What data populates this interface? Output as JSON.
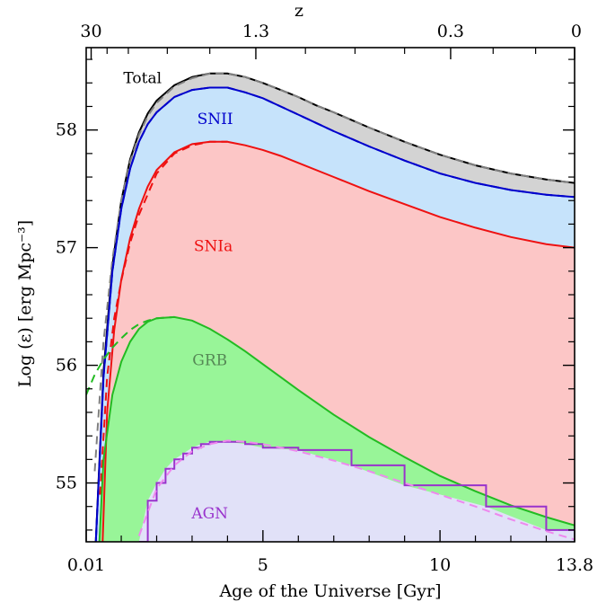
{
  "chart_data": {
    "type": "area",
    "xlabel": "Age of the Universe [Gyr]",
    "ylabel": "Log (ε) [erg Mpc⁻³]",
    "top_axis_label": "z",
    "xlim": [
      0.01,
      13.8
    ],
    "ylim": [
      54.5,
      58.7
    ],
    "x_ticks": [
      {
        "value": 0.01,
        "label": "0.01"
      },
      {
        "value": 5,
        "label": "5"
      },
      {
        "value": 10,
        "label": "10"
      },
      {
        "value": 13.8,
        "label": "13.8"
      }
    ],
    "y_ticks": [
      {
        "value": 55,
        "label": "55"
      },
      {
        "value": 56,
        "label": "56"
      },
      {
        "value": 57,
        "label": "57"
      },
      {
        "value": 58,
        "label": "58"
      }
    ],
    "top_ticks": [
      {
        "value": 0.15,
        "label": "30"
      },
      {
        "value": 4.8,
        "label": "1.3"
      },
      {
        "value": 10.3,
        "label": "0.3"
      },
      {
        "value": 13.8,
        "label": "0"
      }
    ],
    "series": [
      {
        "name": "Total",
        "fill": "#d3d3d3",
        "line_color": "#000000",
        "dashed_color": "#808080",
        "label_at": [
          1.6,
          58.4
        ],
        "x": [
          0.25,
          0.5,
          0.75,
          1.0,
          1.25,
          1.5,
          1.75,
          2.0,
          2.5,
          3.0,
          3.5,
          4.0,
          4.5,
          5.0,
          5.5,
          6.0,
          6.5,
          7.0,
          8.0,
          9.0,
          10.0,
          11.0,
          12.0,
          13.0,
          13.8
        ],
        "y": [
          54.3,
          55.95,
          56.85,
          57.4,
          57.75,
          57.98,
          58.14,
          58.25,
          58.38,
          58.45,
          58.48,
          58.48,
          58.45,
          58.4,
          58.34,
          58.28,
          58.21,
          58.15,
          58.02,
          57.9,
          57.79,
          57.7,
          57.63,
          57.58,
          57.55
        ],
        "dashed_y": [
          55.1,
          56.2,
          56.9,
          57.4,
          57.73,
          57.96,
          58.12,
          58.23,
          58.37,
          58.44,
          58.48,
          58.48,
          58.45,
          58.4,
          58.34,
          58.28,
          58.21,
          58.15,
          58.02,
          57.9,
          57.79,
          57.7,
          57.63,
          57.58,
          57.55
        ]
      },
      {
        "name": "SNII",
        "fill": "#c6e3fb",
        "line_color": "#0000cc",
        "dashed_color": "#0000cc",
        "label_at": [
          3.65,
          58.05
        ],
        "x": [
          0.25,
          0.5,
          0.75,
          1.0,
          1.25,
          1.5,
          1.75,
          2.0,
          2.5,
          3.0,
          3.5,
          4.0,
          4.5,
          5.0,
          5.5,
          6.0,
          6.5,
          7.0,
          8.0,
          9.0,
          10.0,
          11.0,
          12.0,
          13.0,
          13.8
        ],
        "y": [
          54.3,
          55.9,
          56.8,
          57.33,
          57.67,
          57.9,
          58.05,
          58.15,
          58.28,
          58.34,
          58.36,
          58.36,
          58.32,
          58.27,
          58.2,
          58.13,
          58.06,
          57.99,
          57.86,
          57.74,
          57.63,
          57.55,
          57.49,
          57.45,
          57.43
        ]
      },
      {
        "name": "SNIa",
        "fill": "#fcc6c6",
        "line_color": "#ee1111",
        "dashed_color": "#ee1111",
        "label_at": [
          3.6,
          56.97
        ],
        "x": [
          0.45,
          0.6,
          0.8,
          1.0,
          1.25,
          1.5,
          1.75,
          2.0,
          2.5,
          3.0,
          3.5,
          4.0,
          4.5,
          5.0,
          5.5,
          6.0,
          7.0,
          8.0,
          9.0,
          10.0,
          11.0,
          12.0,
          13.0,
          13.8
        ],
        "y": [
          54.3,
          55.6,
          56.3,
          56.73,
          57.08,
          57.33,
          57.52,
          57.66,
          57.81,
          57.88,
          57.9,
          57.9,
          57.87,
          57.83,
          57.78,
          57.72,
          57.6,
          57.48,
          57.37,
          57.26,
          57.17,
          57.09,
          57.03,
          57.0
        ],
        "dashed_x": [
          0.4,
          0.6,
          0.8,
          1.0,
          1.25,
          1.5,
          2.0,
          2.5,
          3.0,
          3.5,
          4.0
        ],
        "dashed_y": [
          54.9,
          55.9,
          56.4,
          56.72,
          57.04,
          57.28,
          57.63,
          57.8,
          57.87,
          57.9,
          57.9
        ]
      },
      {
        "name": "GRB",
        "fill": "#98f598",
        "line_color": "#22bb22",
        "dashed_color": "#22bb22",
        "label_at": [
          3.5,
          56.0
        ],
        "x": [
          0.35,
          0.5,
          0.75,
          1.0,
          1.25,
          1.5,
          1.75,
          2.0,
          2.5,
          3.0,
          3.5,
          4.0,
          4.5,
          5.0,
          5.5,
          6.0,
          7.0,
          8.0,
          9.0,
          10.0,
          11.0,
          12.0,
          13.0,
          13.8
        ],
        "y": [
          54.3,
          55.2,
          55.75,
          56.03,
          56.2,
          56.31,
          56.37,
          56.4,
          56.41,
          56.38,
          56.31,
          56.22,
          56.12,
          56.01,
          55.9,
          55.79,
          55.58,
          55.39,
          55.22,
          55.06,
          54.93,
          54.81,
          54.71,
          54.64
        ],
        "dashed_x": [
          0.01,
          0.25,
          0.5,
          0.75,
          1.0,
          1.25,
          1.5,
          1.75,
          2.0,
          2.5
        ],
        "dashed_y": [
          55.75,
          55.92,
          56.05,
          56.15,
          56.23,
          56.3,
          56.35,
          56.38,
          56.4,
          56.41
        ]
      },
      {
        "name": "AGN",
        "fill": "#e1e1f8",
        "line_color": "#9933cc",
        "dashed_color": "#ee88ee",
        "label_at": [
          3.5,
          54.7
        ],
        "x": [
          1.5,
          1.75,
          2.0,
          2.25,
          2.5,
          2.75,
          3.0,
          3.25,
          3.5,
          4.0,
          4.5,
          5.0,
          6.0,
          7.5,
          9.0,
          11.3,
          13.0,
          13.8
        ],
        "y": [
          54.5,
          54.85,
          55.0,
          55.12,
          55.2,
          55.25,
          55.3,
          55.33,
          55.35,
          55.35,
          55.33,
          55.3,
          55.28,
          55.15,
          54.98,
          54.8,
          54.6,
          54.6
        ],
        "dashed_x": [
          1.5,
          2.0,
          2.5,
          3.0,
          3.5,
          4.0,
          4.5,
          5.0,
          6.0,
          7.0,
          8.0,
          9.0,
          10.0,
          11.0,
          12.0,
          13.0,
          13.8
        ],
        "dashed_y": [
          54.55,
          54.95,
          55.15,
          55.27,
          55.33,
          55.36,
          55.35,
          55.33,
          55.27,
          55.19,
          55.1,
          55.0,
          54.9,
          54.8,
          54.69,
          54.59,
          54.52
        ]
      }
    ]
  }
}
